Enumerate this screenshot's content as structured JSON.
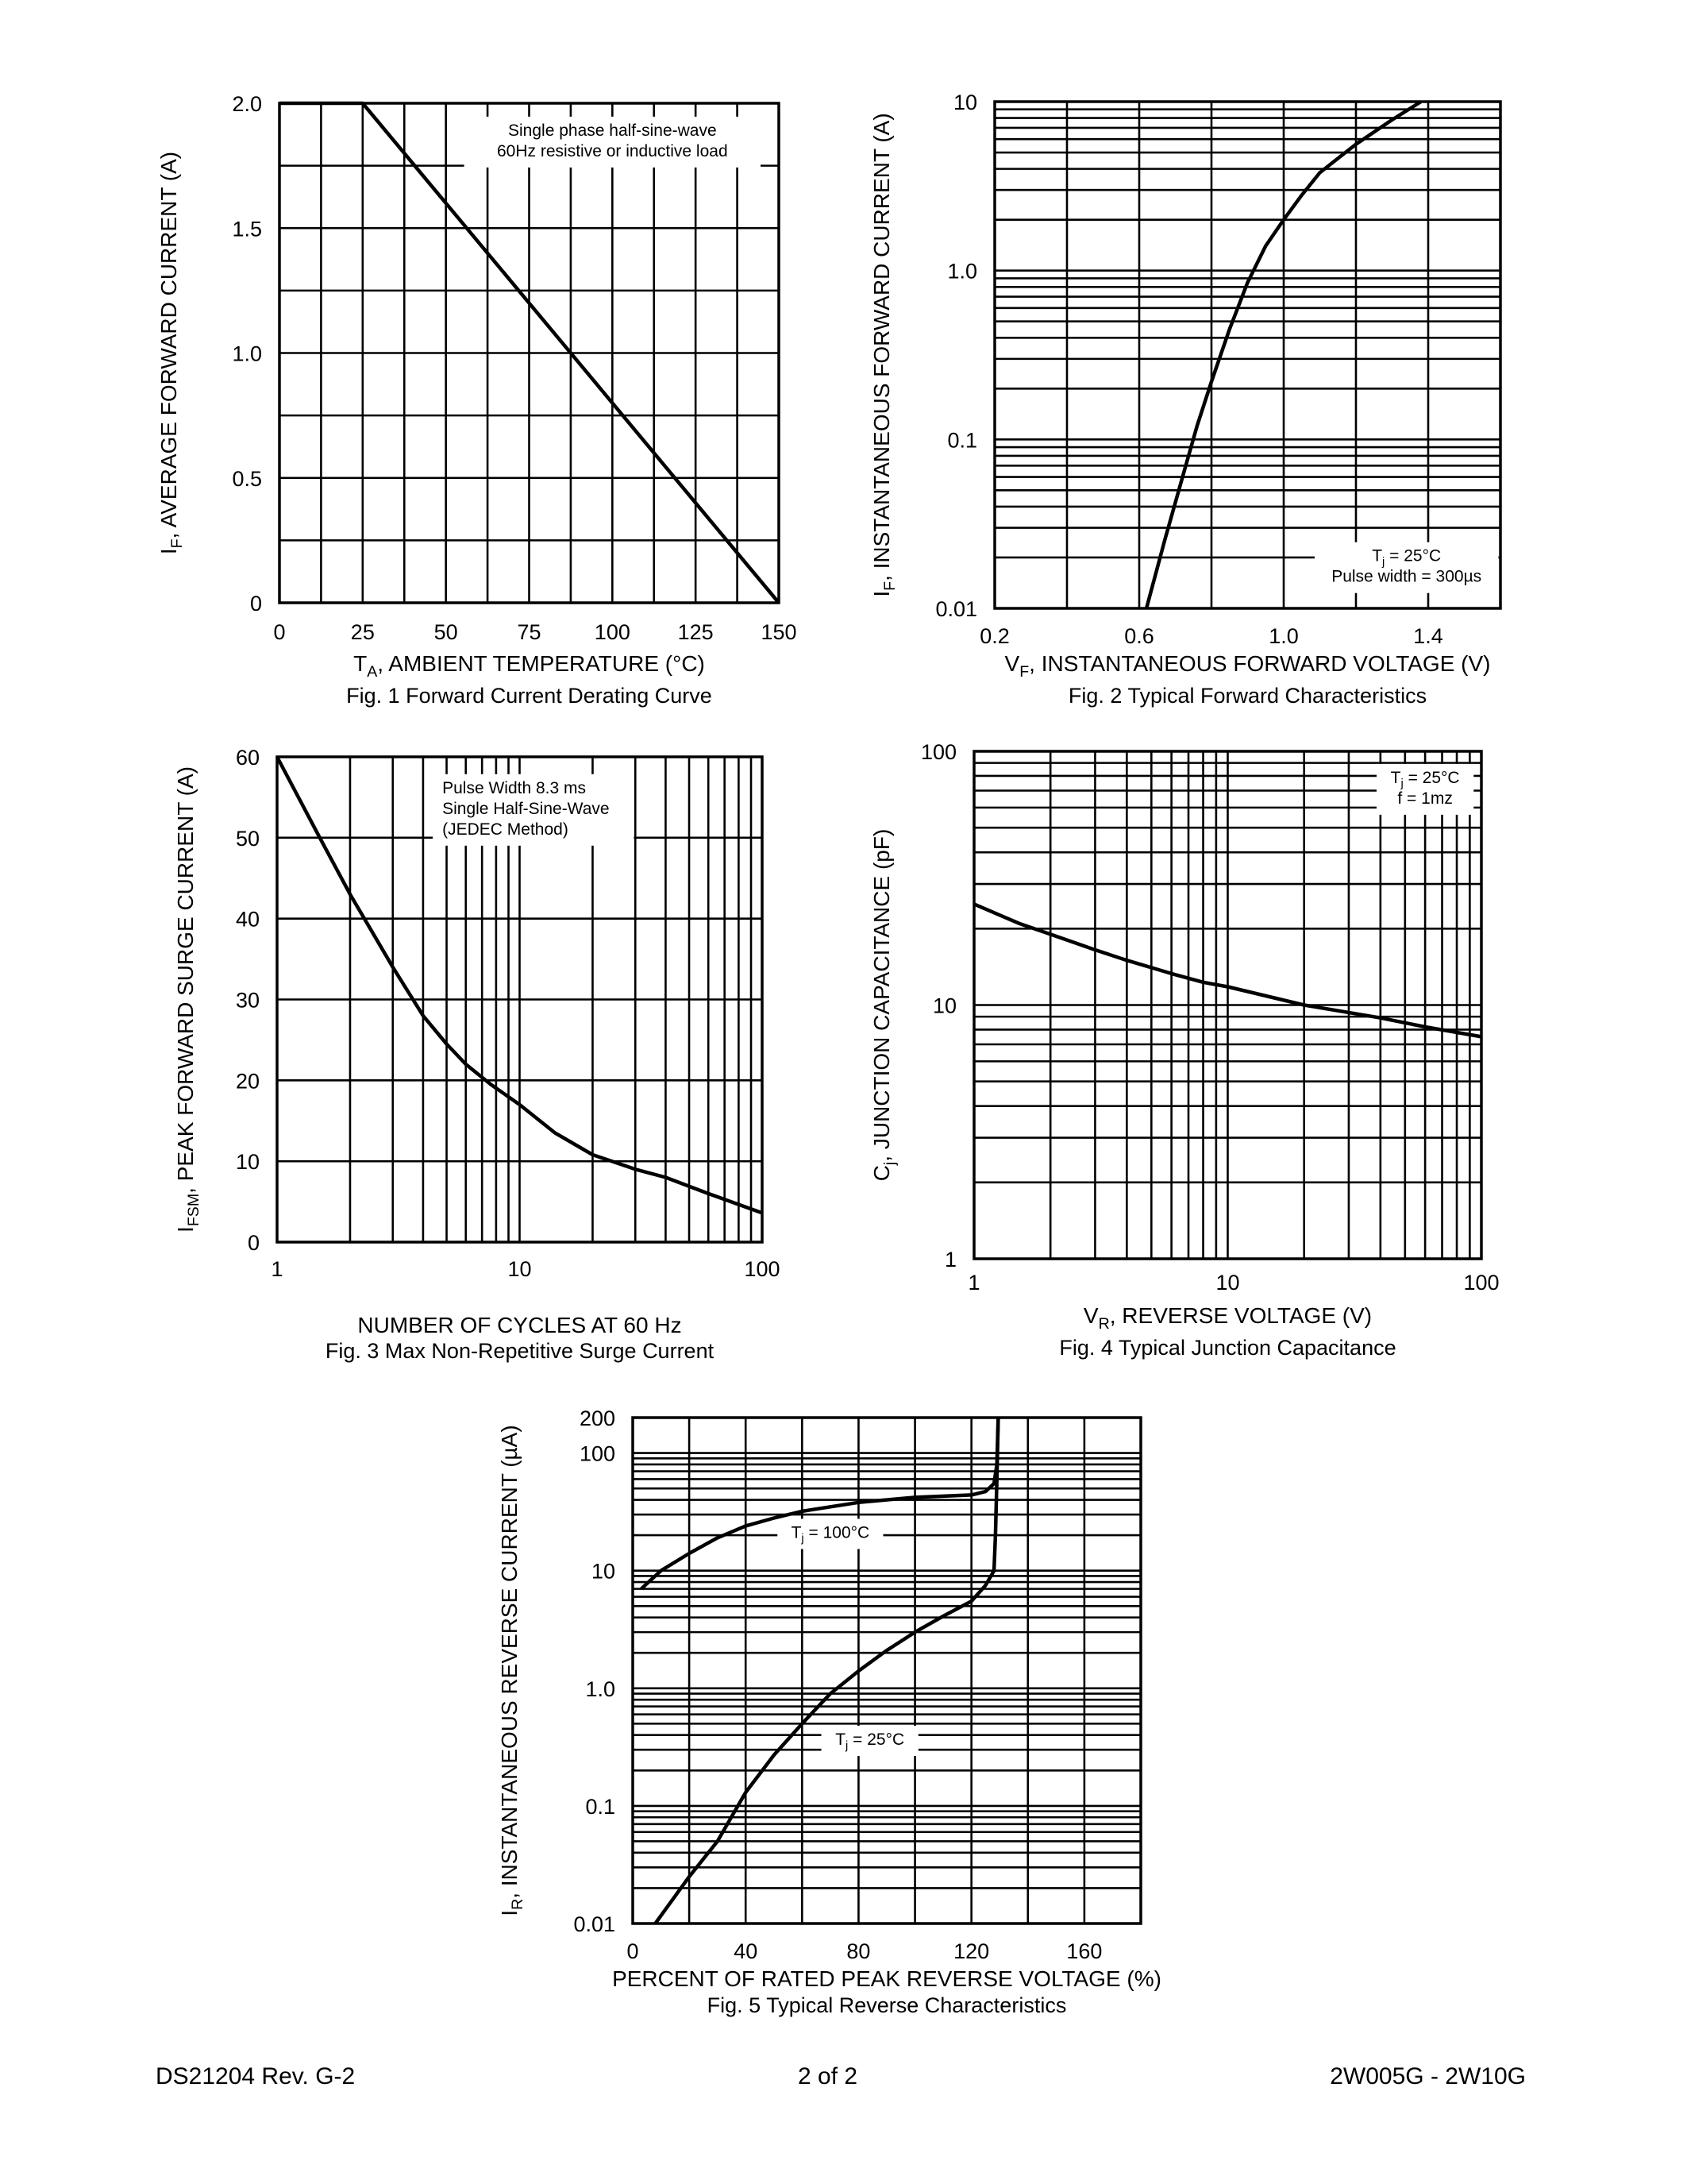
{
  "footer": {
    "left": "DS21204 Rev. G-2",
    "center": "2 of 2",
    "right": "2W005G - 2W10G"
  },
  "colors": {
    "line": "#000000",
    "background": "#ffffff"
  },
  "chart_data": [
    {
      "type": "line",
      "title": "Fig. 1  Forward Current Derating Curve",
      "xlabel": {
        "main": "T",
        "sub": "A",
        "rest": ", AMBIENT TEMPERATURE (°C)"
      },
      "ylabel": {
        "main": "I",
        "sub": "F",
        "rest": ", AVERAGE FORWARD CURRENT (A)"
      },
      "xscale": "linear",
      "yscale": "linear",
      "xlim": [
        0,
        150
      ],
      "ylim": [
        0,
        2.0
      ],
      "x_grid_step": 12.5,
      "y_grid_step": 0.25,
      "grid": true,
      "xticks": [
        {
          "v": 0,
          "label": "0"
        },
        {
          "v": 25,
          "label": "25"
        },
        {
          "v": 50,
          "label": "50"
        },
        {
          "v": 75,
          "label": "75"
        },
        {
          "v": 100,
          "label": "100"
        },
        {
          "v": 125,
          "label": "125"
        },
        {
          "v": 150,
          "label": "150"
        }
      ],
      "yticks": [
        {
          "v": 0,
          "label": "0"
        },
        {
          "v": 0.5,
          "label": "0.5"
        },
        {
          "v": 1.0,
          "label": "1.0"
        },
        {
          "v": 1.5,
          "label": "1.5"
        },
        {
          "v": 2.0,
          "label": "2.0"
        }
      ],
      "annotations": [
        {
          "lines": [
            "Single phase half-sine-wave",
            "60Hz resistive or inductive load"
          ],
          "x": 100,
          "y": 1.87
        }
      ],
      "series": [
        {
          "points": [
            [
              0,
              2.0
            ],
            [
              25,
              2.0
            ],
            [
              150,
              0
            ]
          ]
        }
      ]
    },
    {
      "type": "line",
      "title": "Fig. 2  Typical Forward Characteristics",
      "xlabel": {
        "main": "V",
        "sub": "F",
        "rest": ", INSTANTANEOUS FORWARD VOLTAGE (V)"
      },
      "ylabel": {
        "main": "I",
        "sub": "F",
        "rest": ", INSTANTANEOUS FORWARD CURRENT (A)"
      },
      "xscale": "linear",
      "yscale": "log",
      "xlim": [
        0.2,
        1.6
      ],
      "ylim": [
        0.01,
        10
      ],
      "x_grid_step": 0.2,
      "grid": true,
      "xticks": [
        {
          "v": 0.2,
          "label": "0.2"
        },
        {
          "v": 0.6,
          "label": "0.6"
        },
        {
          "v": 1.0,
          "label": "1.0"
        },
        {
          "v": 1.4,
          "label": "1.4"
        }
      ],
      "yticks": [
        {
          "v": 0.01,
          "label": "0.01"
        },
        {
          "v": 0.1,
          "label": "0.1"
        },
        {
          "v": 1,
          "label": "1.0"
        },
        {
          "v": 10,
          "label": "10"
        }
      ],
      "annotations": [
        {
          "lines": [
            "Tj = 25°C",
            "Pulse width = 300µs"
          ],
          "sub_first": {
            "main": "T",
            "sub": "j",
            "rest": " = 25°C"
          },
          "x": 1.34,
          "y": 0.019
        }
      ],
      "series": [
        {
          "points": [
            [
              0.62,
              0.01
            ],
            [
              0.67,
              0.025
            ],
            [
              0.72,
              0.06
            ],
            [
              0.76,
              0.12
            ],
            [
              0.8,
              0.22
            ],
            [
              0.85,
              0.45
            ],
            [
              0.9,
              0.85
            ],
            [
              0.95,
              1.4
            ],
            [
              1.0,
              2.0
            ],
            [
              1.05,
              2.8
            ],
            [
              1.1,
              3.8
            ],
            [
              1.2,
              5.6
            ],
            [
              1.3,
              7.8
            ],
            [
              1.38,
              10
            ]
          ]
        }
      ]
    },
    {
      "type": "line",
      "title": "Fig. 3  Max Non-Repetitive Surge Current",
      "xlabel": {
        "main": "NUMBER OF CYCLES AT 60 Hz",
        "sub": "",
        "rest": ""
      },
      "ylabel": {
        "main": "I",
        "sub": "FSM",
        "rest": ", PEAK FORWARD SURGE CURRENT (A)"
      },
      "xscale": "log",
      "yscale": "linear",
      "xlim": [
        1,
        100
      ],
      "ylim": [
        0,
        60
      ],
      "y_grid_step": 10,
      "grid": true,
      "xticks": [
        {
          "v": 1,
          "label": "1"
        },
        {
          "v": 10,
          "label": "10"
        },
        {
          "v": 100,
          "label": "100"
        }
      ],
      "yticks": [
        {
          "v": 0,
          "label": "0"
        },
        {
          "v": 10,
          "label": "10"
        },
        {
          "v": 20,
          "label": "20"
        },
        {
          "v": 30,
          "label": "30"
        },
        {
          "v": 40,
          "label": "40"
        },
        {
          "v": 50,
          "label": "50"
        },
        {
          "v": 60,
          "label": "60"
        }
      ],
      "annotations": [
        {
          "lines": [
            "Pulse Width 8.3 ms",
            "Single Half-Sine-Wave",
            "(JEDEC Method)"
          ],
          "align": "start",
          "x": 4.8,
          "y": 55.5
        }
      ],
      "series": [
        {
          "points": [
            [
              1,
              60
            ],
            [
              1.5,
              50
            ],
            [
              2,
              43
            ],
            [
              3,
              34
            ],
            [
              4,
              28
            ],
            [
              5,
              24.5
            ],
            [
              6,
              22
            ],
            [
              7.6,
              19.5
            ],
            [
              10,
              17
            ],
            [
              14,
              13.5
            ],
            [
              20,
              10.8
            ],
            [
              30,
              9
            ],
            [
              40,
              8
            ],
            [
              60,
              6
            ],
            [
              100,
              3.6
            ]
          ]
        }
      ]
    },
    {
      "type": "line",
      "title": "Fig. 4  Typical Junction Capacitance",
      "xlabel": {
        "main": "V",
        "sub": "R",
        "rest": ", REVERSE VOLTAGE (V)"
      },
      "ylabel": {
        "main": "C",
        "sub": "j",
        "rest": ", JUNCTION CAPACITANCE (pF)"
      },
      "xscale": "log",
      "yscale": "log",
      "xlim": [
        1,
        100
      ],
      "ylim": [
        1,
        100
      ],
      "grid": true,
      "xticks": [
        {
          "v": 1,
          "label": "1"
        },
        {
          "v": 10,
          "label": "10"
        },
        {
          "v": 100,
          "label": "100"
        }
      ],
      "yticks": [
        {
          "v": 1,
          "label": "1"
        },
        {
          "v": 10,
          "label": "10"
        },
        {
          "v": 100,
          "label": "100"
        }
      ],
      "annotations": [
        {
          "lines": [
            "Tj = 25°C",
            "f = 1mz"
          ],
          "sub_first": {
            "main": "T",
            "sub": "j",
            "rest": " = 25°C"
          },
          "x": 60,
          "y": 75
        }
      ],
      "series": [
        {
          "points": [
            [
              1,
              25
            ],
            [
              1.5,
              21
            ],
            [
              2,
              19
            ],
            [
              3,
              16.5
            ],
            [
              4,
              15
            ],
            [
              6,
              13.3
            ],
            [
              8,
              12.3
            ],
            [
              10,
              11.8
            ],
            [
              20,
              10
            ],
            [
              40,
              8.9
            ],
            [
              60,
              8.2
            ],
            [
              100,
              7.5
            ]
          ]
        }
      ]
    },
    {
      "type": "line",
      "title": "Fig. 5  Typical Reverse Characteristics",
      "xlabel": {
        "main": "PERCENT OF RATED PEAK REVERSE VOLTAGE (%)",
        "sub": "",
        "rest": ""
      },
      "ylabel": {
        "main": "I",
        "sub": "R",
        "rest": ", INSTANTANEOUS REVERSE CURRENT (µA)"
      },
      "xscale": "linear",
      "yscale": "log",
      "xlim": [
        0,
        180
      ],
      "ylim": [
        0.01,
        200
      ],
      "x_grid_step": 20,
      "grid": true,
      "xticks": [
        {
          "v": 0,
          "label": "0"
        },
        {
          "v": 40,
          "label": "40"
        },
        {
          "v": 80,
          "label": "80"
        },
        {
          "v": 120,
          "label": "120"
        },
        {
          "v": 160,
          "label": "160"
        }
      ],
      "yticks": [
        {
          "v": 0.01,
          "label": "0.01"
        },
        {
          "v": 0.1,
          "label": "0.1"
        },
        {
          "v": 1,
          "label": "1.0"
        },
        {
          "v": 10,
          "label": "10"
        },
        {
          "v": 100,
          "label": "100"
        },
        {
          "v": 200,
          "label": "200"
        }
      ],
      "annotations": [
        {
          "lines": [
            "Tj = 100°C"
          ],
          "sub_first": {
            "main": "T",
            "sub": "j",
            "rest": " = 100°C"
          },
          "x": 70,
          "y": 19
        },
        {
          "lines": [
            "Tj = 25°C"
          ],
          "sub_first": {
            "main": "T",
            "sub": "j",
            "rest": " = 25°C"
          },
          "x": 84,
          "y": 0.33
        }
      ],
      "series": [
        {
          "name": "Tj = 100°C",
          "points": [
            [
              3,
              7
            ],
            [
              10,
              10
            ],
            [
              20,
              14
            ],
            [
              30,
              19
            ],
            [
              40,
              24
            ],
            [
              50,
              28
            ],
            [
              60,
              32
            ],
            [
              80,
              38
            ],
            [
              100,
              42
            ],
            [
              120,
              44
            ],
            [
              125,
              47
            ],
            [
              128,
              55
            ],
            [
              129,
              80
            ],
            [
              129.5,
              200
            ]
          ]
        },
        {
          "name": "Tj = 25°C",
          "points": [
            [
              8,
              0.01
            ],
            [
              20,
              0.025
            ],
            [
              30,
              0.05
            ],
            [
              40,
              0.13
            ],
            [
              50,
              0.27
            ],
            [
              60,
              0.5
            ],
            [
              70,
              0.9
            ],
            [
              80,
              1.4
            ],
            [
              90,
              2.1
            ],
            [
              100,
              3
            ],
            [
              110,
              4.1
            ],
            [
              120,
              5.5
            ],
            [
              125,
              7.5
            ],
            [
              128,
              10
            ],
            [
              128.5,
              20
            ],
            [
              129,
              60
            ],
            [
              129.5,
              200
            ]
          ]
        }
      ]
    }
  ]
}
